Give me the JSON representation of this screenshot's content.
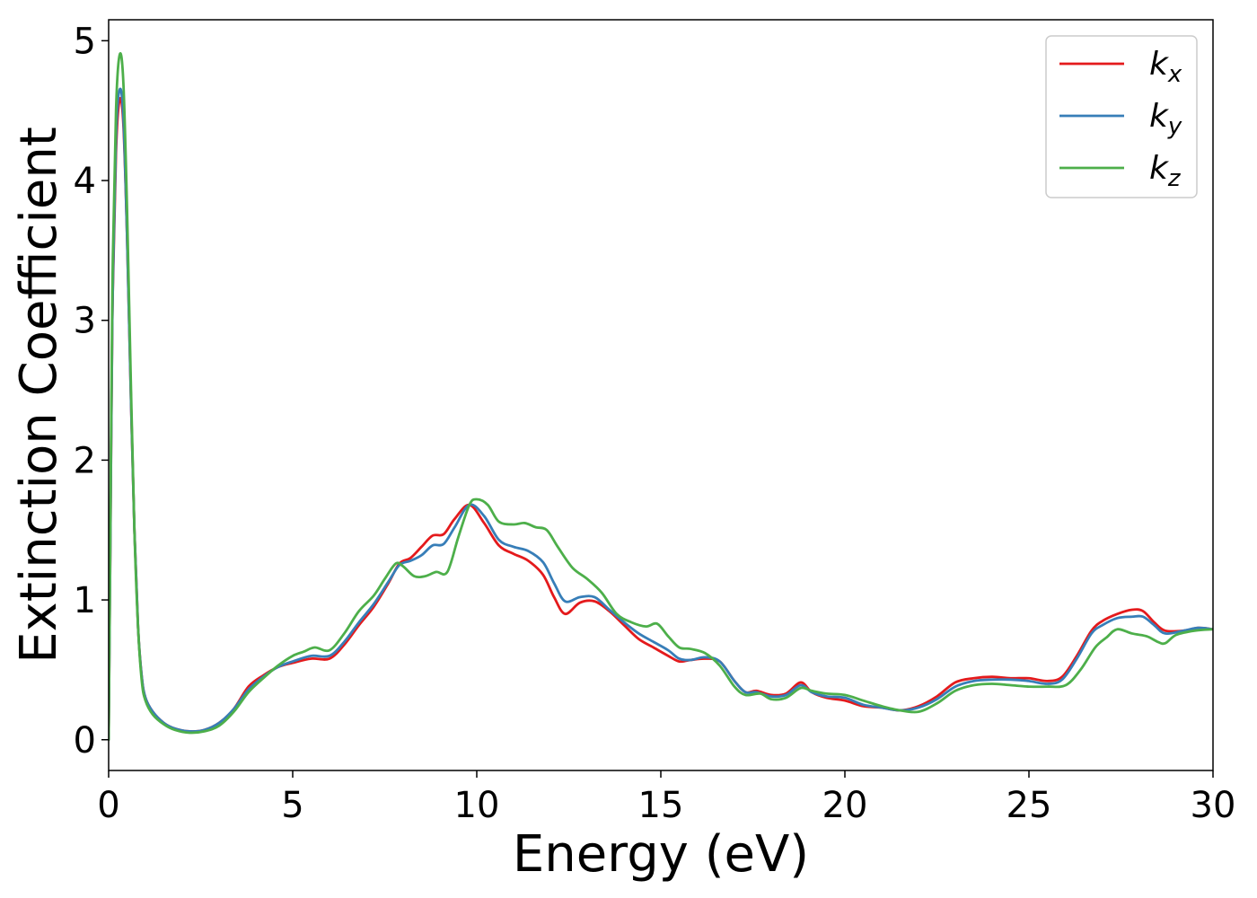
{
  "chart_data": {
    "type": "line",
    "xlabel": "Energy (eV)",
    "ylabel": "Extinction Coefficient",
    "xlim": [
      0,
      30
    ],
    "ylim": [
      -0.22,
      5.15
    ],
    "xticks": [
      0,
      5,
      10,
      15,
      20,
      25,
      30
    ],
    "yticks": [
      0,
      1,
      2,
      3,
      4,
      5
    ],
    "grid": false,
    "legend_position": "top-right",
    "series": [
      {
        "name": "k",
        "subscript": "x",
        "color": "#e41a1c",
        "points": [
          [
            0,
            0
          ],
          [
            0.05,
            1.5
          ],
          [
            0.1,
            3.0
          ],
          [
            0.2,
            4.2
          ],
          [
            0.3,
            4.58
          ],
          [
            0.4,
            4.4
          ],
          [
            0.5,
            3.6
          ],
          [
            0.6,
            2.5
          ],
          [
            0.7,
            1.5
          ],
          [
            0.8,
            0.8
          ],
          [
            0.9,
            0.45
          ],
          [
            1.0,
            0.3
          ],
          [
            1.2,
            0.2
          ],
          [
            1.5,
            0.12
          ],
          [
            1.8,
            0.08
          ],
          [
            2.2,
            0.06
          ],
          [
            2.6,
            0.07
          ],
          [
            3.0,
            0.12
          ],
          [
            3.4,
            0.22
          ],
          [
            3.8,
            0.38
          ],
          [
            4.2,
            0.46
          ],
          [
            4.6,
            0.52
          ],
          [
            5.0,
            0.55
          ],
          [
            5.5,
            0.58
          ],
          [
            6.0,
            0.58
          ],
          [
            6.4,
            0.68
          ],
          [
            6.8,
            0.82
          ],
          [
            7.2,
            0.95
          ],
          [
            7.6,
            1.12
          ],
          [
            7.9,
            1.26
          ],
          [
            8.2,
            1.3
          ],
          [
            8.5,
            1.38
          ],
          [
            8.8,
            1.46
          ],
          [
            9.1,
            1.47
          ],
          [
            9.4,
            1.58
          ],
          [
            9.8,
            1.68
          ],
          [
            10.2,
            1.55
          ],
          [
            10.6,
            1.39
          ],
          [
            11.0,
            1.33
          ],
          [
            11.4,
            1.28
          ],
          [
            11.8,
            1.18
          ],
          [
            12.1,
            1.02
          ],
          [
            12.4,
            0.9
          ],
          [
            12.8,
            0.98
          ],
          [
            13.2,
            0.99
          ],
          [
            13.6,
            0.92
          ],
          [
            14.0,
            0.82
          ],
          [
            14.4,
            0.72
          ],
          [
            14.8,
            0.66
          ],
          [
            15.2,
            0.6
          ],
          [
            15.5,
            0.56
          ],
          [
            15.8,
            0.57
          ],
          [
            16.2,
            0.58
          ],
          [
            16.6,
            0.56
          ],
          [
            17.0,
            0.42
          ],
          [
            17.3,
            0.34
          ],
          [
            17.6,
            0.35
          ],
          [
            18.0,
            0.32
          ],
          [
            18.4,
            0.33
          ],
          [
            18.8,
            0.41
          ],
          [
            19.1,
            0.34
          ],
          [
            19.5,
            0.3
          ],
          [
            20.0,
            0.28
          ],
          [
            20.5,
            0.24
          ],
          [
            21.0,
            0.23
          ],
          [
            21.5,
            0.21
          ],
          [
            22.0,
            0.24
          ],
          [
            22.5,
            0.31
          ],
          [
            23.0,
            0.41
          ],
          [
            23.5,
            0.44
          ],
          [
            24.0,
            0.45
          ],
          [
            24.5,
            0.44
          ],
          [
            25.0,
            0.44
          ],
          [
            25.5,
            0.42
          ],
          [
            25.9,
            0.45
          ],
          [
            26.3,
            0.6
          ],
          [
            26.7,
            0.78
          ],
          [
            27.0,
            0.85
          ],
          [
            27.4,
            0.9
          ],
          [
            27.8,
            0.93
          ],
          [
            28.1,
            0.92
          ],
          [
            28.4,
            0.84
          ],
          [
            28.7,
            0.78
          ],
          [
            29.2,
            0.78
          ],
          [
            29.6,
            0.8
          ],
          [
            30.0,
            0.79
          ]
        ]
      },
      {
        "name": "k",
        "subscript": "y",
        "color": "#377eb8",
        "points": [
          [
            0,
            0
          ],
          [
            0.05,
            1.5
          ],
          [
            0.1,
            3.0
          ],
          [
            0.2,
            4.3
          ],
          [
            0.3,
            4.65
          ],
          [
            0.4,
            4.45
          ],
          [
            0.5,
            3.6
          ],
          [
            0.6,
            2.5
          ],
          [
            0.7,
            1.5
          ],
          [
            0.8,
            0.8
          ],
          [
            0.9,
            0.45
          ],
          [
            1.0,
            0.3
          ],
          [
            1.2,
            0.2
          ],
          [
            1.5,
            0.12
          ],
          [
            1.8,
            0.08
          ],
          [
            2.2,
            0.06
          ],
          [
            2.6,
            0.07
          ],
          [
            3.0,
            0.12
          ],
          [
            3.4,
            0.22
          ],
          [
            3.8,
            0.36
          ],
          [
            4.2,
            0.45
          ],
          [
            4.6,
            0.52
          ],
          [
            5.0,
            0.56
          ],
          [
            5.5,
            0.6
          ],
          [
            6.0,
            0.6
          ],
          [
            6.4,
            0.7
          ],
          [
            6.8,
            0.84
          ],
          [
            7.2,
            0.97
          ],
          [
            7.6,
            1.13
          ],
          [
            7.9,
            1.25
          ],
          [
            8.2,
            1.28
          ],
          [
            8.5,
            1.32
          ],
          [
            8.8,
            1.39
          ],
          [
            9.1,
            1.4
          ],
          [
            9.4,
            1.52
          ],
          [
            9.8,
            1.68
          ],
          [
            10.2,
            1.6
          ],
          [
            10.6,
            1.43
          ],
          [
            11.0,
            1.38
          ],
          [
            11.4,
            1.35
          ],
          [
            11.8,
            1.27
          ],
          [
            12.1,
            1.12
          ],
          [
            12.4,
            0.99
          ],
          [
            12.8,
            1.02
          ],
          [
            13.2,
            1.02
          ],
          [
            13.6,
            0.93
          ],
          [
            14.0,
            0.84
          ],
          [
            14.4,
            0.76
          ],
          [
            14.8,
            0.7
          ],
          [
            15.2,
            0.64
          ],
          [
            15.5,
            0.58
          ],
          [
            15.8,
            0.57
          ],
          [
            16.2,
            0.59
          ],
          [
            16.6,
            0.56
          ],
          [
            17.0,
            0.42
          ],
          [
            17.3,
            0.34
          ],
          [
            17.6,
            0.34
          ],
          [
            18.0,
            0.31
          ],
          [
            18.4,
            0.32
          ],
          [
            18.8,
            0.39
          ],
          [
            19.1,
            0.34
          ],
          [
            19.5,
            0.31
          ],
          [
            20.0,
            0.3
          ],
          [
            20.5,
            0.25
          ],
          [
            21.0,
            0.23
          ],
          [
            21.5,
            0.21
          ],
          [
            22.0,
            0.23
          ],
          [
            22.5,
            0.29
          ],
          [
            23.0,
            0.38
          ],
          [
            23.5,
            0.42
          ],
          [
            24.0,
            0.43
          ],
          [
            24.5,
            0.43
          ],
          [
            25.0,
            0.42
          ],
          [
            25.5,
            0.4
          ],
          [
            25.9,
            0.43
          ],
          [
            26.3,
            0.58
          ],
          [
            26.7,
            0.76
          ],
          [
            27.0,
            0.82
          ],
          [
            27.4,
            0.87
          ],
          [
            27.8,
            0.88
          ],
          [
            28.1,
            0.88
          ],
          [
            28.4,
            0.82
          ],
          [
            28.7,
            0.76
          ],
          [
            29.2,
            0.78
          ],
          [
            29.6,
            0.8
          ],
          [
            30.0,
            0.79
          ]
        ]
      },
      {
        "name": "k",
        "subscript": "z",
        "color": "#4daf4a",
        "points": [
          [
            0,
            0
          ],
          [
            0.05,
            1.6
          ],
          [
            0.1,
            3.2
          ],
          [
            0.2,
            4.5
          ],
          [
            0.3,
            4.9
          ],
          [
            0.4,
            4.7
          ],
          [
            0.5,
            3.8
          ],
          [
            0.6,
            2.6
          ],
          [
            0.7,
            1.5
          ],
          [
            0.8,
            0.8
          ],
          [
            0.9,
            0.42
          ],
          [
            1.0,
            0.28
          ],
          [
            1.2,
            0.18
          ],
          [
            1.5,
            0.11
          ],
          [
            1.8,
            0.07
          ],
          [
            2.2,
            0.05
          ],
          [
            2.6,
            0.06
          ],
          [
            3.0,
            0.1
          ],
          [
            3.4,
            0.2
          ],
          [
            3.8,
            0.34
          ],
          [
            4.2,
            0.44
          ],
          [
            4.6,
            0.53
          ],
          [
            5.0,
            0.6
          ],
          [
            5.3,
            0.63
          ],
          [
            5.6,
            0.66
          ],
          [
            6.0,
            0.64
          ],
          [
            6.4,
            0.76
          ],
          [
            6.8,
            0.92
          ],
          [
            7.2,
            1.03
          ],
          [
            7.5,
            1.15
          ],
          [
            7.8,
            1.26
          ],
          [
            8.0,
            1.24
          ],
          [
            8.3,
            1.17
          ],
          [
            8.6,
            1.17
          ],
          [
            8.9,
            1.2
          ],
          [
            9.2,
            1.2
          ],
          [
            9.5,
            1.45
          ],
          [
            9.8,
            1.68
          ],
          [
            10.0,
            1.72
          ],
          [
            10.3,
            1.68
          ],
          [
            10.6,
            1.56
          ],
          [
            11.0,
            1.54
          ],
          [
            11.3,
            1.55
          ],
          [
            11.6,
            1.52
          ],
          [
            11.9,
            1.5
          ],
          [
            12.2,
            1.38
          ],
          [
            12.6,
            1.23
          ],
          [
            13.0,
            1.15
          ],
          [
            13.4,
            1.05
          ],
          [
            13.8,
            0.9
          ],
          [
            14.2,
            0.84
          ],
          [
            14.6,
            0.81
          ],
          [
            14.9,
            0.83
          ],
          [
            15.2,
            0.74
          ],
          [
            15.5,
            0.66
          ],
          [
            15.8,
            0.65
          ],
          [
            16.2,
            0.62
          ],
          [
            16.6,
            0.53
          ],
          [
            17.0,
            0.38
          ],
          [
            17.3,
            0.32
          ],
          [
            17.7,
            0.33
          ],
          [
            18.0,
            0.29
          ],
          [
            18.4,
            0.3
          ],
          [
            18.8,
            0.37
          ],
          [
            19.1,
            0.35
          ],
          [
            19.5,
            0.33
          ],
          [
            20.0,
            0.32
          ],
          [
            20.5,
            0.28
          ],
          [
            21.0,
            0.24
          ],
          [
            21.5,
            0.21
          ],
          [
            22.0,
            0.2
          ],
          [
            22.5,
            0.26
          ],
          [
            23.0,
            0.35
          ],
          [
            23.5,
            0.39
          ],
          [
            24.0,
            0.4
          ],
          [
            24.5,
            0.39
          ],
          [
            25.0,
            0.38
          ],
          [
            25.5,
            0.38
          ],
          [
            26.0,
            0.39
          ],
          [
            26.4,
            0.5
          ],
          [
            26.8,
            0.66
          ],
          [
            27.1,
            0.73
          ],
          [
            27.4,
            0.79
          ],
          [
            27.8,
            0.76
          ],
          [
            28.2,
            0.74
          ],
          [
            28.5,
            0.7
          ],
          [
            28.7,
            0.69
          ],
          [
            29.0,
            0.75
          ],
          [
            29.5,
            0.78
          ],
          [
            30.0,
            0.79
          ]
        ]
      }
    ]
  }
}
